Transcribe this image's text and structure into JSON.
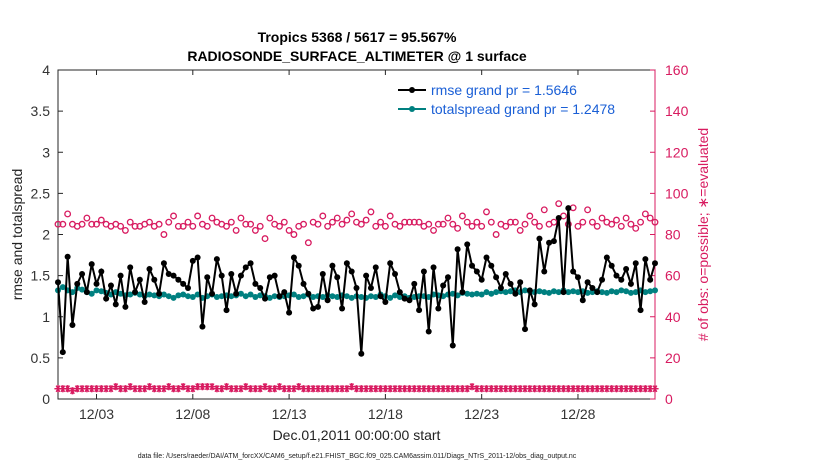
{
  "chart_data": {
    "type": "line",
    "title_line1": "Tropics 5368 / 5617 = 95.567%",
    "title_line2": "RADIOSONDE_SURFACE_ALTIMETER @ 1 surface",
    "xlabel": "Dec.01,2011 00:00:00 start",
    "ylabel_left": "rmse and totalspread",
    "ylabel_right": "# of obs: o=possible; ∗=evaluated",
    "x_tick_labels": [
      "12/03",
      "12/08",
      "12/13",
      "12/18",
      "12/23",
      "12/28"
    ],
    "x_tick_values": [
      3,
      8,
      13,
      18,
      23,
      28
    ],
    "xlim": [
      1,
      32
    ],
    "ylim_left": [
      0,
      4
    ],
    "y_ticks_left": [
      "0",
      "0.5",
      "1",
      "1.5",
      "2",
      "2.5",
      "3",
      "3.5",
      "4"
    ],
    "ylim_right": [
      0,
      160
    ],
    "y_ticks_right": [
      "0",
      "20",
      "40",
      "60",
      "80",
      "100",
      "120",
      "140",
      "160"
    ],
    "x_start": 1,
    "x_step": 0.25,
    "series": [
      {
        "name": "rmse",
        "legend": "rmse grand pr = 1.5646",
        "color": "#000000",
        "axis": "left",
        "values": [
          1.42,
          0.57,
          1.73,
          0.9,
          1.4,
          1.52,
          1.3,
          1.64,
          1.4,
          1.55,
          1.22,
          1.38,
          1.15,
          1.5,
          1.12,
          1.6,
          1.3,
          1.45,
          1.18,
          1.58,
          1.45,
          1.28,
          1.65,
          1.52,
          1.5,
          1.45,
          1.4,
          1.35,
          1.68,
          1.72,
          0.88,
          1.48,
          1.28,
          1.7,
          1.5,
          1.08,
          1.52,
          1.28,
          1.5,
          1.6,
          1.65,
          1.4,
          1.35,
          1.22,
          1.48,
          1.5,
          1.25,
          1.3,
          1.05,
          1.72,
          1.62,
          1.4,
          1.28,
          1.1,
          1.12,
          1.52,
          1.2,
          1.62,
          1.48,
          1.1,
          1.65,
          1.55,
          1.35,
          0.55,
          1.5,
          1.35,
          1.6,
          1.25,
          1.18,
          1.65,
          1.52,
          1.3,
          1.22,
          1.2,
          1.4,
          1.08,
          1.55,
          0.82,
          1.6,
          1.1,
          1.38,
          1.48,
          0.65,
          1.82,
          1.3,
          1.88,
          1.62,
          1.55,
          1.45,
          1.72,
          1.62,
          1.48,
          1.35,
          1.52,
          1.4,
          1.28,
          1.42,
          0.85,
          1.32,
          1.15,
          1.95,
          1.55,
          1.9,
          1.92,
          2.2,
          1.3,
          2.32,
          1.55,
          1.48,
          1.2,
          1.42,
          1.35,
          1.3,
          1.45,
          1.72,
          1.62,
          1.5,
          1.45,
          1.58,
          1.4,
          1.65,
          1.08,
          1.7,
          1.45,
          1.65,
          1.55,
          1.4,
          1.92,
          1.05,
          1.48,
          1.95,
          2.05,
          1.85,
          1.62,
          1.08,
          1.58,
          1.68,
          1.4,
          1.38,
          1.2,
          1.65,
          1.28,
          1.55,
          1.12,
          1.65,
          0.95,
          1.72,
          1.75,
          0.42,
          1.65,
          0.9,
          1.55,
          1.68,
          1.35,
          1.95,
          1.65,
          1.7,
          1.9,
          1.52,
          1.38,
          1.78,
          1.05,
          0.65,
          1.15,
          1.9,
          1.68,
          1.45,
          1.82,
          2.0,
          2.08,
          1.65,
          1.8,
          1.75,
          2.05,
          1.62,
          1.98,
          2.02,
          2.04
        ]
      },
      {
        "name": "totalspread",
        "legend": "totalspread grand pr = 1.2478",
        "color": "#008080",
        "axis": "left",
        "values": [
          1.32,
          1.36,
          1.32,
          1.3,
          1.35,
          1.33,
          1.3,
          1.28,
          1.32,
          1.31,
          1.29,
          1.27,
          1.3,
          1.28,
          1.26,
          1.27,
          1.29,
          1.27,
          1.25,
          1.27,
          1.26,
          1.25,
          1.27,
          1.25,
          1.23,
          1.26,
          1.27,
          1.25,
          1.24,
          1.27,
          1.23,
          1.25,
          1.27,
          1.24,
          1.25,
          1.26,
          1.25,
          1.26,
          1.28,
          1.25,
          1.27,
          1.24,
          1.26,
          1.25,
          1.23,
          1.25,
          1.24,
          1.25,
          1.26,
          1.27,
          1.24,
          1.25,
          1.27,
          1.24,
          1.25,
          1.24,
          1.26,
          1.25,
          1.24,
          1.26,
          1.25,
          1.23,
          1.25,
          1.24,
          1.23,
          1.25,
          1.24,
          1.27,
          1.25,
          1.23,
          1.26,
          1.24,
          1.25,
          1.23,
          1.24,
          1.25,
          1.25,
          1.24,
          1.27,
          1.26,
          1.25,
          1.27,
          1.28,
          1.26,
          1.29,
          1.28,
          1.27,
          1.28,
          1.27,
          1.3,
          1.28,
          1.3,
          1.31,
          1.3,
          1.31,
          1.32,
          1.3,
          1.32,
          1.31,
          1.3,
          1.31,
          1.3,
          1.29,
          1.31,
          1.3,
          1.32,
          1.3,
          1.31,
          1.3,
          1.31,
          1.29,
          1.3,
          1.31,
          1.3,
          1.29,
          1.31,
          1.3,
          1.32,
          1.31,
          1.29,
          1.3,
          1.32,
          1.3,
          1.31,
          1.32,
          1.31,
          1.3,
          1.33,
          1.32,
          1.34,
          1.33,
          1.32,
          1.35,
          1.34,
          1.33,
          1.35,
          1.32,
          1.34,
          1.32,
          1.3,
          1.33,
          1.32,
          1.34,
          1.31,
          1.32,
          1.3,
          1.33,
          1.34,
          1.3,
          1.34,
          1.31,
          1.33,
          1.3,
          1.32,
          1.34,
          1.35,
          1.31,
          1.33,
          1.3,
          1.32,
          1.33,
          1.31,
          1.3,
          1.28,
          1.33,
          1.3,
          1.32,
          1.28,
          1.31,
          1.3,
          1.32,
          1.33,
          1.3,
          1.31,
          1.3,
          1.28,
          1.33,
          1.3,
          1.32,
          1.35
        ]
      },
      {
        "name": "possible",
        "marker": "o",
        "color": "#d81b60",
        "axis": "right",
        "values": [
          85,
          85,
          90,
          85,
          84,
          85,
          88,
          85,
          85,
          87,
          85,
          84,
          85,
          84,
          82,
          86,
          84,
          84,
          85,
          86,
          84,
          85,
          80,
          86,
          89,
          84,
          84,
          86,
          84,
          89,
          85,
          84,
          88,
          86,
          85,
          84,
          86,
          82,
          88,
          85,
          85,
          82,
          84,
          78,
          88,
          85,
          84,
          86,
          82,
          80,
          84,
          85,
          76,
          86,
          85,
          89,
          84,
          86,
          88,
          85,
          87,
          90,
          86,
          85,
          87,
          91,
          84,
          86,
          84,
          89,
          85,
          84,
          86,
          86,
          86,
          86,
          84,
          85,
          82,
          85,
          85,
          88,
          85,
          83,
          89,
          86,
          84,
          86,
          84,
          91,
          86,
          80,
          85,
          84,
          86,
          86,
          82,
          85,
          89,
          86,
          84,
          92,
          85,
          86,
          95,
          89,
          85,
          93,
          84,
          86,
          92,
          86,
          84,
          88,
          86,
          85,
          87,
          84,
          88,
          85,
          83,
          86,
          90,
          88,
          86,
          84,
          85,
          86,
          86,
          85,
          86,
          85,
          88,
          84,
          86,
          86,
          82,
          86,
          84,
          90,
          86,
          84,
          80,
          86,
          84,
          85,
          84,
          87,
          88,
          84,
          82,
          88,
          86,
          90,
          80,
          85,
          88,
          84,
          84,
          90,
          86,
          84,
          83,
          88,
          82,
          80,
          85,
          87,
          86,
          82,
          84,
          90,
          82,
          76,
          84,
          78,
          84,
          88,
          84,
          84,
          84,
          80
        ]
      },
      {
        "name": "evaluated",
        "marker": "*",
        "color": "#d81b60",
        "axis": "right",
        "values": [
          5,
          5,
          5,
          4,
          5,
          5,
          5,
          5,
          5,
          5,
          5,
          5,
          6,
          5,
          5,
          6,
          5,
          5,
          5,
          6,
          5,
          5,
          5,
          6,
          5,
          5,
          6,
          5,
          5,
          6,
          6,
          6,
          6,
          5,
          5,
          6,
          5,
          5,
          5,
          6,
          5,
          5,
          5,
          6,
          5,
          5,
          6,
          5,
          5,
          5,
          6,
          5,
          5,
          5,
          5,
          5,
          5,
          5,
          5,
          5,
          5,
          6,
          5,
          5,
          5,
          5,
          5,
          5,
          5,
          5,
          5,
          5,
          5,
          5,
          5,
          5,
          5,
          5,
          5,
          5,
          5,
          5,
          5,
          5,
          5,
          5,
          6,
          5,
          5,
          5,
          5,
          5,
          5,
          5,
          5,
          5,
          5,
          5,
          5,
          5,
          5,
          5,
          5,
          5,
          5,
          5,
          5,
          5,
          5,
          5,
          5,
          5,
          5,
          5,
          5,
          5,
          5,
          5,
          5,
          5,
          5,
          5,
          5,
          5,
          5,
          5,
          5,
          5,
          5,
          5,
          5,
          5,
          5,
          5,
          5,
          5,
          5,
          5,
          5,
          5,
          5,
          5,
          5,
          5,
          5,
          6,
          5,
          5,
          5,
          5,
          5,
          5,
          5,
          5,
          5,
          5,
          5,
          5,
          5,
          5,
          5,
          5,
          5,
          5,
          5,
          5,
          5,
          5,
          5,
          5,
          5,
          5,
          5,
          5,
          5,
          7,
          5,
          5,
          5,
          5,
          4,
          0
        ]
      }
    ],
    "footer": "data file: /Users/raeder/DAI/ATM_forcXX/CAM6_setup/f.e21.FHIST_BGC.f09_025.CAM6assim.011/Diags_NTrS_2011-12/obs_diag_output.nc"
  }
}
